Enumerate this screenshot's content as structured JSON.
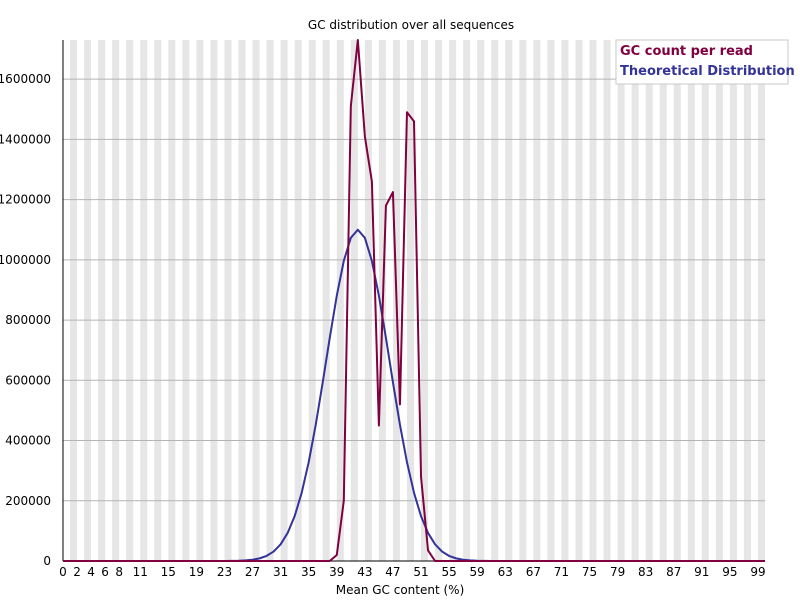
{
  "chart_data": {
    "type": "line",
    "title": "GC distribution over all sequences",
    "xlabel": "Mean GC content (%)",
    "ylabel": "",
    "xlim": [
      0,
      100
    ],
    "ylim": [
      0,
      1730000
    ],
    "x_ticks": [
      0,
      2,
      4,
      6,
      8,
      11,
      15,
      19,
      23,
      27,
      31,
      35,
      39,
      43,
      47,
      51,
      55,
      59,
      63,
      67,
      71,
      75,
      79,
      83,
      87,
      91,
      95,
      99
    ],
    "y_ticks": [
      0,
      200000,
      400000,
      600000,
      800000,
      1000000,
      1200000,
      1400000,
      1600000
    ],
    "grid": true,
    "legend_position": "top-right",
    "series": [
      {
        "name": "GC count per read",
        "color": "#800040",
        "x": [
          0,
          1,
          2,
          3,
          4,
          5,
          6,
          7,
          8,
          9,
          10,
          11,
          12,
          13,
          14,
          15,
          16,
          17,
          18,
          19,
          20,
          21,
          22,
          23,
          24,
          25,
          26,
          27,
          28,
          29,
          30,
          31,
          32,
          33,
          34,
          35,
          36,
          37,
          38,
          39,
          40,
          41,
          42,
          43,
          44,
          45,
          46,
          47,
          48,
          49,
          50,
          51,
          52,
          53,
          54,
          55,
          56,
          57,
          58,
          59,
          60,
          61,
          62,
          63,
          64,
          65,
          66,
          67,
          68,
          69,
          70,
          71,
          72,
          73,
          74,
          75,
          76,
          77,
          78,
          79,
          80,
          81,
          82,
          83,
          84,
          85,
          86,
          87,
          88,
          89,
          90,
          91,
          92,
          93,
          94,
          95,
          96,
          97,
          98,
          99,
          100
        ],
        "values": [
          0,
          0,
          0,
          0,
          0,
          0,
          0,
          0,
          0,
          0,
          0,
          0,
          0,
          0,
          0,
          0,
          0,
          0,
          0,
          0,
          0,
          0,
          0,
          0,
          0,
          0,
          0,
          0,
          0,
          0,
          0,
          0,
          0,
          0,
          0,
          0,
          0,
          0,
          0,
          20000,
          200000,
          1510000,
          1730000,
          1410000,
          1260000,
          450000,
          1180000,
          1225000,
          520000,
          1490000,
          1460000,
          280000,
          35000,
          0,
          0,
          0,
          0,
          0,
          0,
          0,
          0,
          0,
          0,
          0,
          0,
          0,
          0,
          0,
          0,
          0,
          0,
          0,
          0,
          0,
          0,
          0,
          0,
          0,
          0,
          0,
          0,
          0,
          0,
          0,
          0,
          0,
          0,
          0,
          0,
          0,
          0,
          0,
          0,
          0,
          0,
          0,
          0,
          0,
          0,
          0,
          0
        ]
      },
      {
        "name": "Theoretical Distribution",
        "color": "#333399",
        "mean": 42,
        "sd": 4.5,
        "peak": 1100000,
        "range": [
          0,
          100
        ]
      }
    ]
  }
}
